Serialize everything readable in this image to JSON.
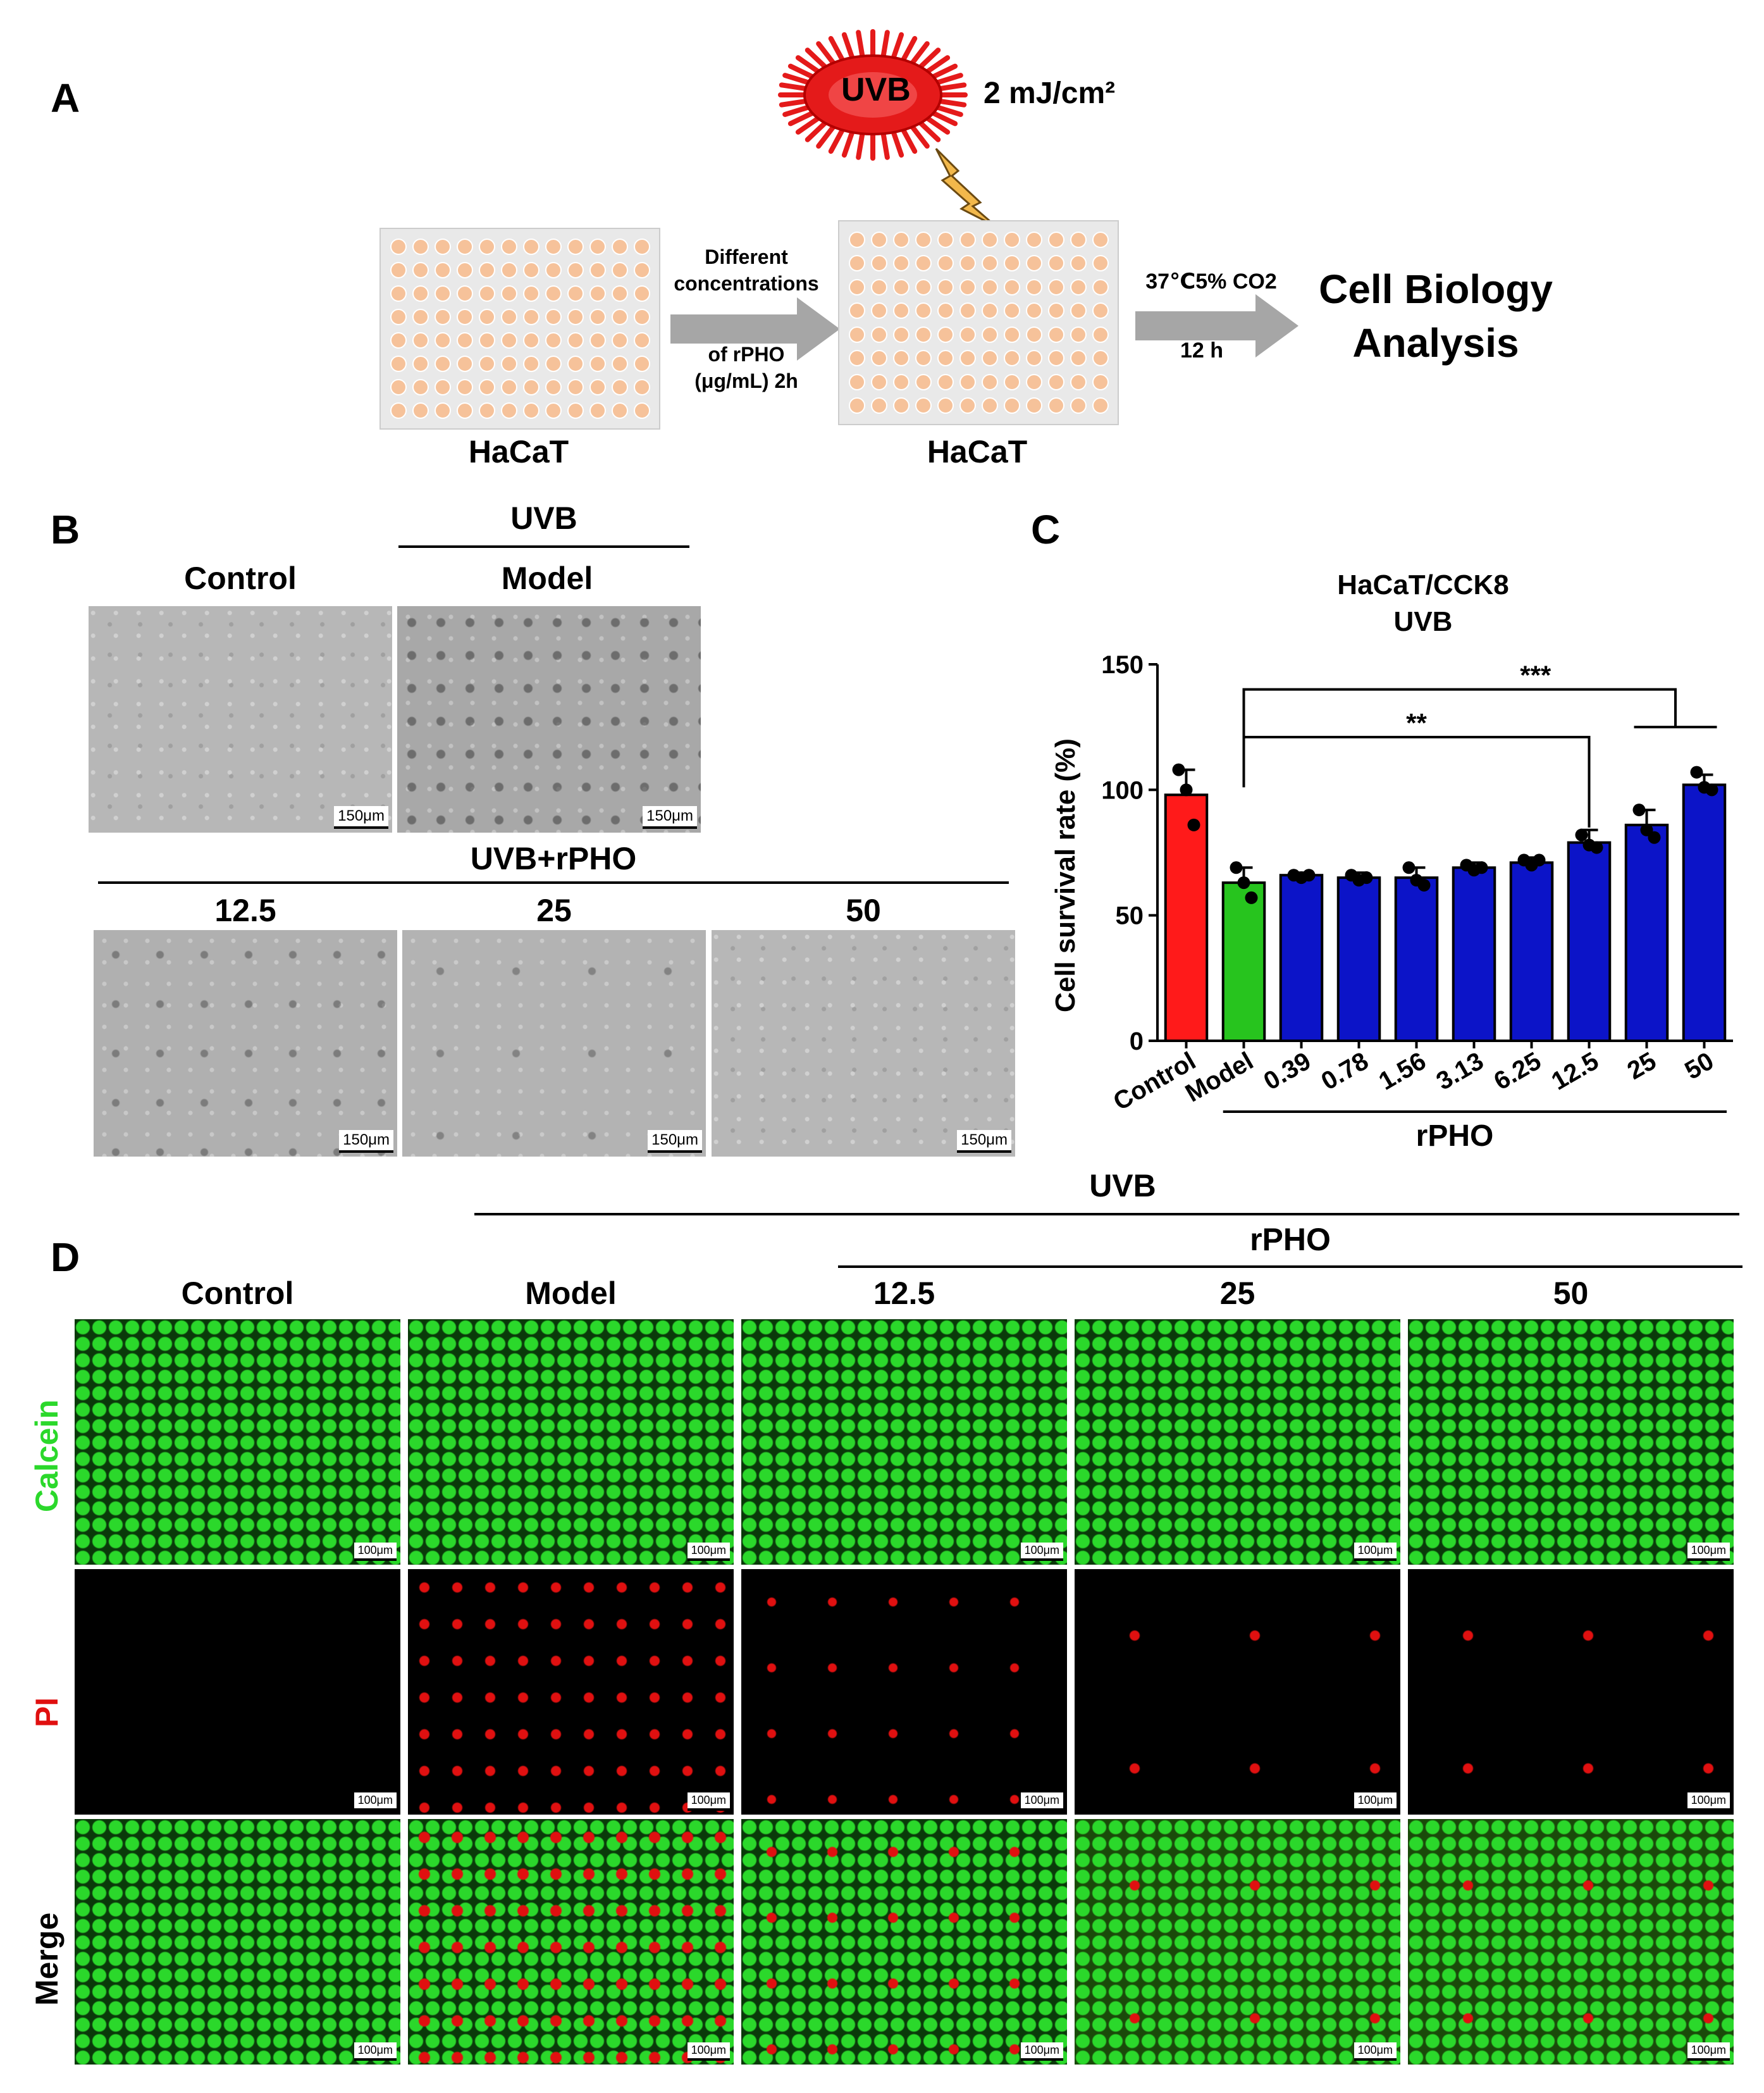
{
  "panels": {
    "a": "A",
    "b": "B",
    "c": "C",
    "d": "D"
  },
  "panel_a": {
    "uvb_label": "UVB",
    "dose": "2 mJ/cm²",
    "plate1_label": "HaCaT",
    "plate2_label": "HaCaT",
    "arrow1_line1": "Different",
    "arrow1_line2": "concentrations",
    "arrow1_line3": "of rPHO",
    "arrow1_line4": "(μg/mL) 2h",
    "arrow2_top": "37℃5% CO2",
    "arrow2_bottom": "12 h",
    "result_line1": "Cell Biology",
    "result_line2": "Analysis",
    "colors": {
      "well": "#f6c29a",
      "plate": "#e9e9e9",
      "uv_red": "#e41a1a",
      "arrow": "#a6a6a6",
      "bolt": "#f2b84b"
    }
  },
  "panel_b": {
    "uvb_header": "UVB",
    "control": "Control",
    "model": "Model",
    "treatment_header": "UVB+rPHO",
    "conc": [
      "12.5",
      "25",
      "50"
    ],
    "scale": "150μm"
  },
  "panel_d": {
    "uvb_header": "UVB",
    "rpho_header": "rPHO",
    "columns": [
      "Control",
      "Model",
      "12.5",
      "25",
      "50"
    ],
    "rows": [
      "Calcein",
      "PI",
      "Merge"
    ],
    "scale": "100μm",
    "colors": {
      "calcein": "#2bd82b",
      "pi": "#e01010",
      "merge": "#000000"
    }
  },
  "chart_data": {
    "type": "bar",
    "title": "HaCaT/CCK8",
    "subtitle": "UVB",
    "ylabel": "Cell survival rate (%)",
    "xgroup_label": "rPHO",
    "ylim": [
      0,
      150
    ],
    "yticks": [
      0,
      50,
      100,
      150
    ],
    "categories": [
      "Control",
      "Model",
      "0.39",
      "0.78",
      "1.56",
      "3.13",
      "6.25",
      "12.5",
      "25",
      "50"
    ],
    "values": [
      98,
      63,
      66,
      65,
      65,
      69,
      71,
      79,
      86,
      102
    ],
    "errors": [
      10,
      6,
      1,
      2,
      4,
      2,
      2,
      5,
      6,
      4
    ],
    "points": [
      [
        108,
        100,
        86
      ],
      [
        69,
        63,
        57
      ],
      [
        66,
        65,
        66
      ],
      [
        66,
        64,
        65
      ],
      [
        69,
        64,
        62
      ],
      [
        70,
        68,
        69
      ],
      [
        72,
        70,
        72
      ],
      [
        82,
        78,
        77
      ],
      [
        92,
        84,
        81
      ],
      [
        107,
        101,
        100
      ]
    ],
    "colors": [
      "#ff1a1a",
      "#27c41e",
      "#0c14c8",
      "#0c14c8",
      "#0c14c8",
      "#0c14c8",
      "#0c14c8",
      "#0c14c8",
      "#0c14c8",
      "#0c14c8"
    ],
    "significance": [
      {
        "label": "**",
        "from": "Model",
        "to": "12.5"
      },
      {
        "label": "***",
        "from": "Model",
        "to": [
          "25",
          "50"
        ]
      }
    ]
  }
}
